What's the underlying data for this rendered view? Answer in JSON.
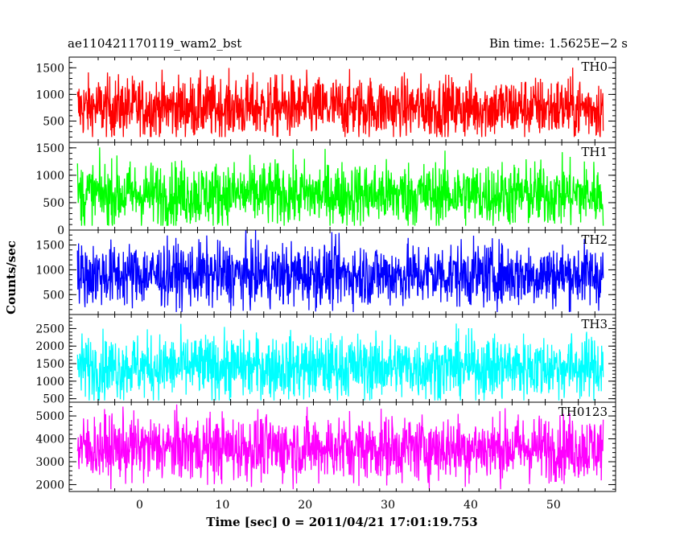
{
  "header": {
    "title": "ae110421170119_wam2_bst",
    "bin_time": "Bin time: 1.5625E−2 s"
  },
  "chart_data": {
    "type": "line",
    "title": "ae110421170119_wam2_bst",
    "xlabel": "Time [sec] 0 = 2011/04/21 17:01:19.753",
    "ylabel": "Counts/sec",
    "xlim": [
      -8.5,
      57.5
    ],
    "x_ticks": [
      "0",
      "10",
      "20",
      "30",
      "40",
      "50"
    ],
    "x_range_data": [
      -7.5,
      56
    ],
    "panels": [
      {
        "name": "TH0",
        "color": "#ff0000",
        "ylim": [
          100,
          1700
        ],
        "yticks": [
          "500",
          "1000",
          "1500"
        ],
        "mean": 750,
        "min": 200,
        "max": 1700
      },
      {
        "name": "TH1",
        "color": "#00ff00",
        "ylim": [
          0,
          1600
        ],
        "yticks": [
          "0",
          "500",
          "1000",
          "1500"
        ],
        "mean": 650,
        "min": 80,
        "max": 1600
      },
      {
        "name": "TH2",
        "color": "#0000ff",
        "ylim": [
          100,
          1800
        ],
        "yticks": [
          "500",
          "1000",
          "1500"
        ],
        "mean": 900,
        "min": 150,
        "max": 1800
      },
      {
        "name": "TH3",
        "color": "#00ffff",
        "ylim": [
          400,
          2900
        ],
        "yticks": [
          "500",
          "1000",
          "1500",
          "2000",
          "2500"
        ],
        "mean": 1400,
        "min": 450,
        "max": 2800
      },
      {
        "name": "TH0123",
        "color": "#ff00ff",
        "ylim": [
          1700,
          5600
        ],
        "yticks": [
          "2000",
          "3000",
          "4000",
          "5000"
        ],
        "mean": 3600,
        "min": 1800,
        "max": 5500
      }
    ]
  }
}
